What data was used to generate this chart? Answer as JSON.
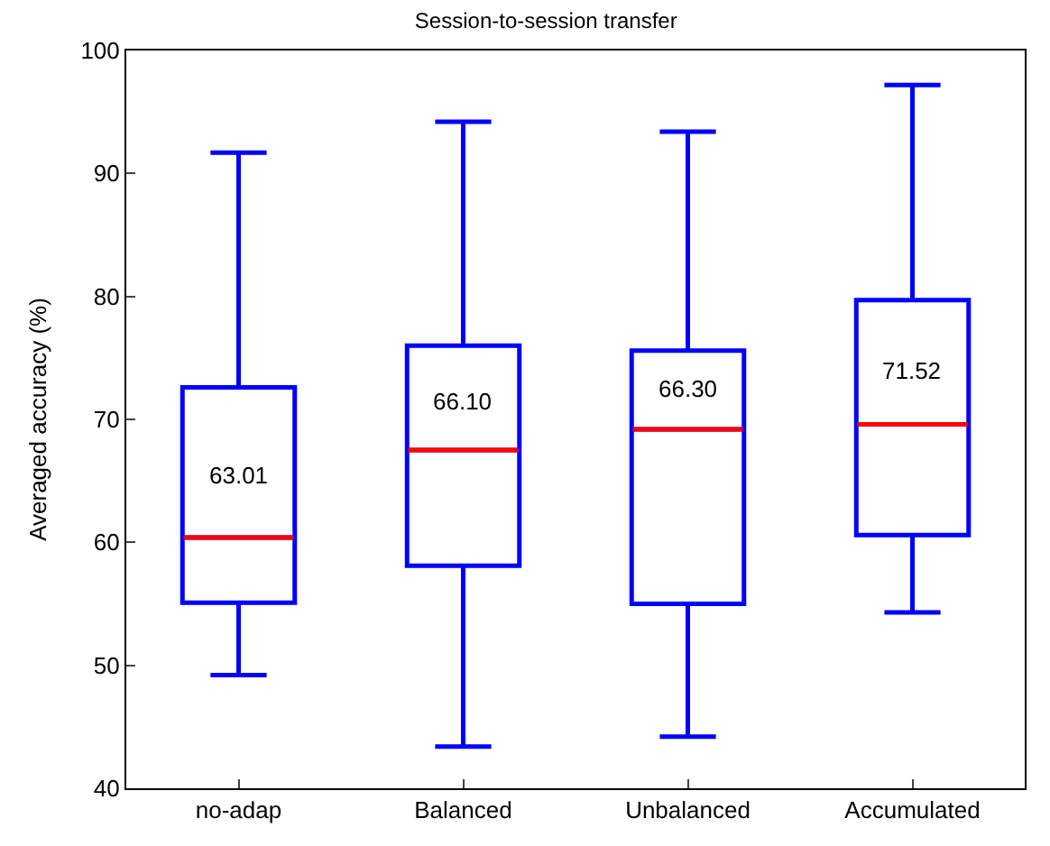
{
  "chart_data": {
    "type": "box",
    "title": "Session-to-session transfer",
    "ylabel": "Averaged accuracy (%)",
    "categories": [
      "no-adap",
      "Balanced",
      "Unbalanced",
      "Accumulated"
    ],
    "color": "#0000ff",
    "boxes": [
      {
        "low": 49.2,
        "q1": 55.1,
        "median": 60.4,
        "q3": 72.6,
        "high": 91.7
      },
      {
        "low": 43.4,
        "q1": 58.1,
        "median": 67.5,
        "q3": 76.0,
        "high": 94.2
      },
      {
        "low": 44.2,
        "q1": 55.0,
        "median": 69.2,
        "q3": 75.6,
        "high": 93.4
      },
      {
        "low": 54.3,
        "q1": 60.6,
        "median": 69.6,
        "q3": 79.7,
        "high": 97.2
      }
    ],
    "annotations": [
      "63.01",
      "66.10",
      "66.30",
      "71.52"
    ],
    "ylim": [
      40,
      100
    ],
    "yticks": [
      40,
      50,
      60,
      70,
      80,
      90,
      100
    ],
    "legend": false
  }
}
